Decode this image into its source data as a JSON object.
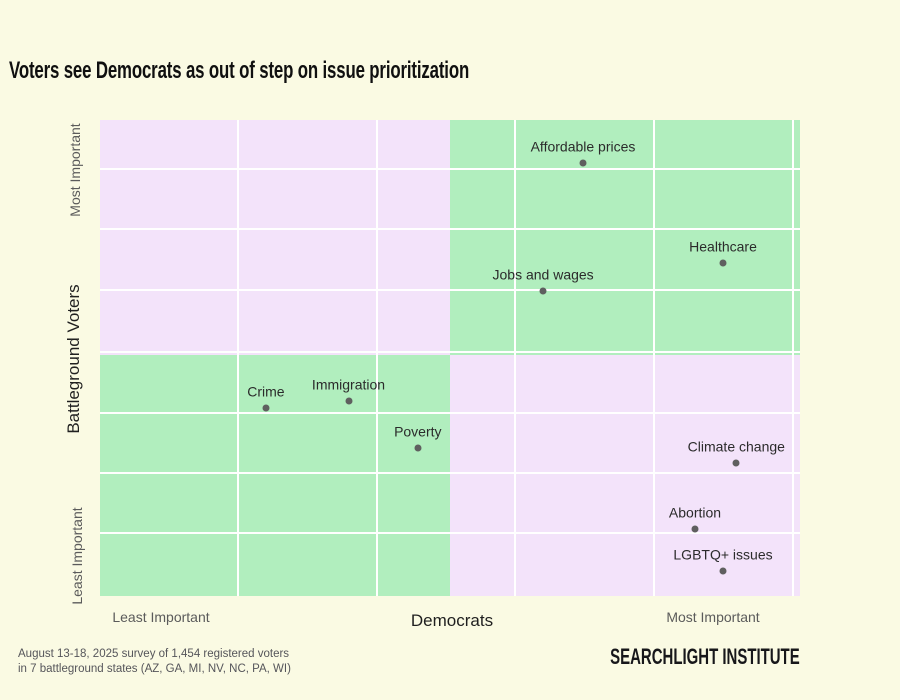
{
  "chart_data": {
    "type": "scatter",
    "title": "Voters see Democrats as out of step on issue prioritization",
    "x_axis": {
      "title": "Democrats",
      "min_label": "Least Important",
      "max_label": "Most Important"
    },
    "y_axis": {
      "title": "Battleground Voters",
      "min_label": "Least Important",
      "max_label": "Most Important"
    },
    "points": [
      {
        "label": "Affordable prices",
        "x_pct": 69,
        "y_pct": 91
      },
      {
        "label": "Healthcare",
        "x_pct": 89,
        "y_pct": 70
      },
      {
        "label": "Jobs and wages",
        "x_pct": 63.3,
        "y_pct": 64
      },
      {
        "label": "Crime",
        "x_pct": 23.7,
        "y_pct": 39.5
      },
      {
        "label": "Immigration",
        "x_pct": 35.5,
        "y_pct": 41
      },
      {
        "label": "Poverty",
        "x_pct": 45.4,
        "y_pct": 31
      },
      {
        "label": "Climate change",
        "x_pct": 90.9,
        "y_pct": 28
      },
      {
        "label": "Abortion",
        "x_pct": 85,
        "y_pct": 14
      },
      {
        "label": "LGBTQ+ issues",
        "x_pct": 89,
        "y_pct": 5.2
      }
    ],
    "quadrant_colors": {
      "top_left": "#F3E3FA",
      "top_right": "#B1EEBE",
      "bottom_left": "#B1EEBE",
      "bottom_right": "#F3E3FA"
    },
    "point_color": "#5F5F5F",
    "label_color": "#2B2B2B",
    "layout": {
      "grid": true,
      "legend": false,
      "grid_x_pct": [
        19.7,
        39.6,
        59.3,
        79.1,
        99.0
      ],
      "grid_y_pct_from_top": [
        10.3,
        22.9,
        35.7,
        48.7,
        61.6,
        74.2,
        86.8
      ],
      "split_x_pct": 50,
      "split_y_pct_from_top": 49.3
    }
  },
  "footnote": {
    "line1": "August 13-18, 2025 survey of 1,454 registered voters",
    "line2": "in 7 battleground states (AZ, GA, MI, NV, NC, PA, WI)"
  },
  "logo_text": "SEARCHLIGHT INSTITUTE",
  "colors": {
    "background": "#FAFAE3",
    "grid_line": "#FFFFFF"
  }
}
